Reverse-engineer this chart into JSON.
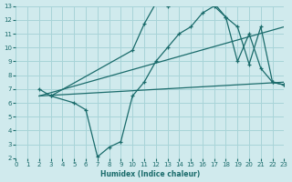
{
  "xlabel": "Humidex (Indice chaleur)",
  "xlim": [
    0,
    23
  ],
  "ylim": [
    2,
    13
  ],
  "xticks": [
    0,
    1,
    2,
    3,
    4,
    5,
    6,
    7,
    8,
    9,
    10,
    11,
    12,
    13,
    14,
    15,
    16,
    17,
    18,
    19,
    20,
    21,
    22,
    23
  ],
  "yticks": [
    2,
    3,
    4,
    5,
    6,
    7,
    8,
    9,
    10,
    11,
    12,
    13
  ],
  "bg_color": "#d0eaed",
  "line_color": "#1a6b6b",
  "grid_color": "#a8d4d8",
  "line1_x": [
    2,
    3,
    10,
    11,
    12,
    13,
    14,
    15,
    16,
    17,
    18,
    19,
    20,
    21,
    22,
    23
  ],
  "line1_y": [
    7.0,
    6.5,
    9.8,
    11.7,
    13.2,
    13.0,
    13.2,
    13.3,
    13.5,
    13.2,
    12.2,
    11.5,
    8.8,
    11.5,
    7.5,
    7.3
  ],
  "line2_x": [
    2,
    23
  ],
  "line2_y": [
    6.5,
    7.5
  ],
  "line3_x": [
    2,
    23
  ],
  "line3_y": [
    6.5,
    11.5
  ],
  "line4_x": [
    3,
    5,
    6,
    7,
    8,
    9,
    10,
    11,
    12,
    13,
    14,
    15,
    16,
    17,
    18,
    19,
    20,
    21,
    22,
    23
  ],
  "line4_y": [
    6.5,
    6.0,
    5.5,
    2.1,
    2.8,
    3.2,
    6.5,
    7.5,
    9.0,
    10.0,
    11.0,
    11.5,
    12.5,
    13.0,
    12.2,
    9.0,
    11.0,
    8.5,
    7.5,
    7.3
  ]
}
